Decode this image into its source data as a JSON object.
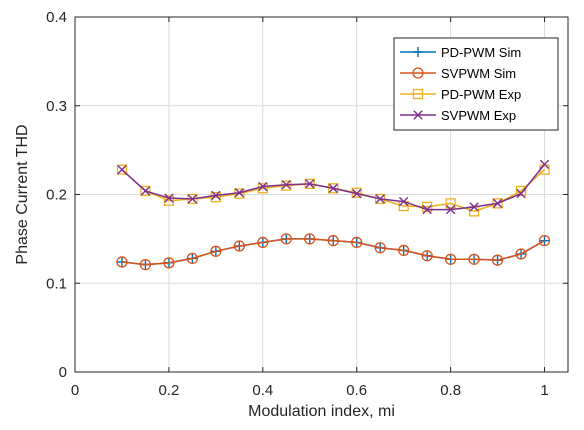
{
  "chart_data": {
    "type": "line",
    "title": "",
    "xlabel": "Modulation index, mi",
    "ylabel": "Phase Current THD",
    "xlim": [
      0,
      1.05
    ],
    "ylim": [
      0,
      0.4
    ],
    "xticks": [
      0,
      0.2,
      0.4,
      0.6,
      0.8,
      1
    ],
    "xtick_labels": [
      "0",
      "0.2",
      "0.4",
      "0.6",
      "0.8",
      "1"
    ],
    "yticks": [
      0,
      0.1,
      0.2,
      0.3,
      0.4
    ],
    "ytick_labels": [
      "0",
      "0.1",
      "0.2",
      "0.3",
      "0.4"
    ],
    "grid": true,
    "legend_position": "top-right",
    "x": [
      0.1,
      0.15,
      0.2,
      0.25,
      0.3,
      0.35,
      0.4,
      0.45,
      0.5,
      0.55,
      0.6,
      0.65,
      0.7,
      0.75,
      0.8,
      0.85,
      0.9,
      0.95,
      1.0
    ],
    "series": [
      {
        "name": "PD-PWM Sim",
        "color": "#0072BD",
        "marker": "plus",
        "values": [
          0.124,
          0.121,
          0.123,
          0.128,
          0.136,
          0.142,
          0.146,
          0.15,
          0.15,
          0.148,
          0.146,
          0.14,
          0.137,
          0.131,
          0.127,
          0.127,
          0.126,
          0.133,
          0.148
        ]
      },
      {
        "name": "SVPWM Sim",
        "color": "#D95319",
        "marker": "circle",
        "values": [
          0.124,
          0.121,
          0.123,
          0.128,
          0.136,
          0.142,
          0.146,
          0.15,
          0.15,
          0.148,
          0.146,
          0.14,
          0.137,
          0.131,
          0.127,
          0.127,
          0.126,
          0.133,
          0.148
        ]
      },
      {
        "name": "PD-PWM Exp",
        "color": "#EDB120",
        "marker": "square",
        "values": [
          0.228,
          0.204,
          0.193,
          0.195,
          0.197,
          0.201,
          0.207,
          0.21,
          0.212,
          0.207,
          0.202,
          0.195,
          0.187,
          0.186,
          0.19,
          0.181,
          0.19,
          0.204,
          0.228
        ]
      },
      {
        "name": "SVPWM Exp",
        "color": "#7E2F8E",
        "marker": "x",
        "values": [
          0.228,
          0.204,
          0.196,
          0.195,
          0.199,
          0.202,
          0.209,
          0.211,
          0.212,
          0.207,
          0.201,
          0.195,
          0.192,
          0.183,
          0.183,
          0.186,
          0.19,
          0.201,
          0.234
        ]
      }
    ]
  }
}
